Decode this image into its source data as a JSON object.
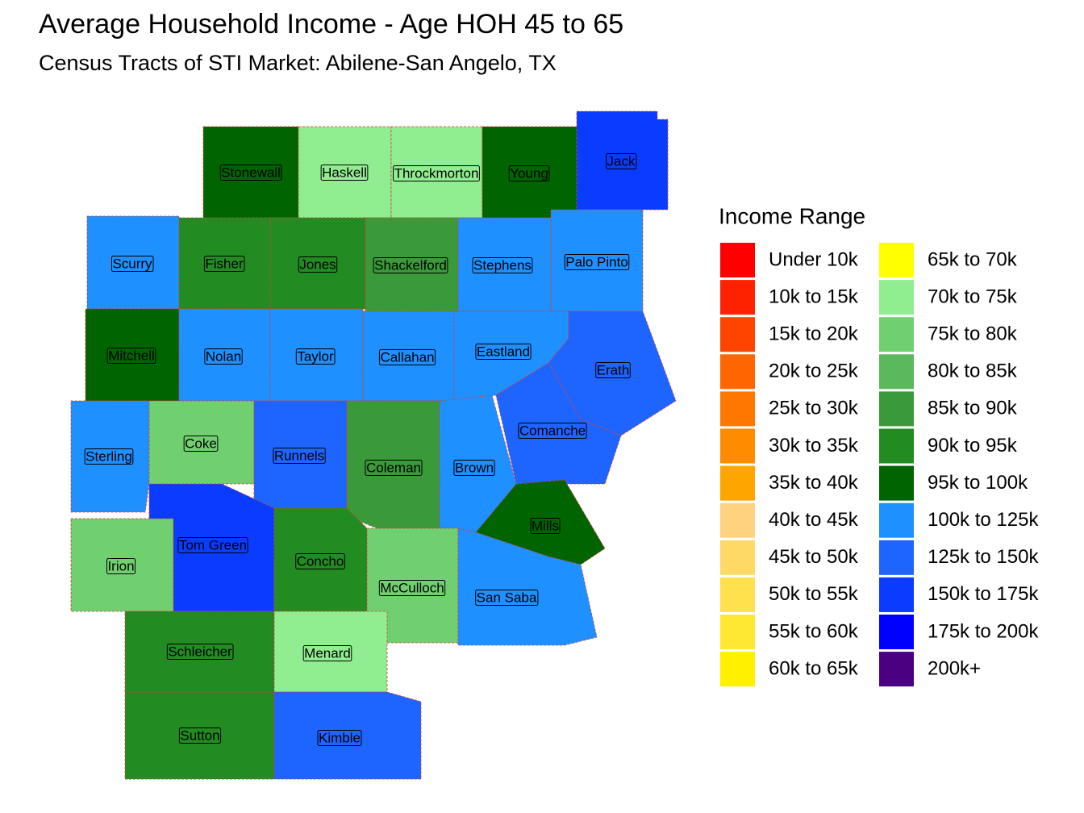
{
  "title": "Average Household Income - Age HOH 45 to 65",
  "subtitle": "Census Tracts of STI Market: Abilene-San Angelo, TX",
  "legend": {
    "title": "Income Range",
    "items": [
      {
        "label": "Under 10k",
        "color": "#FF0000"
      },
      {
        "label": "10k to 15k",
        "color": "#FF2200"
      },
      {
        "label": "15k to 20k",
        "color": "#FF4400"
      },
      {
        "label": "20k to 25k",
        "color": "#FF6600"
      },
      {
        "label": "25k to 30k",
        "color": "#FF7700"
      },
      {
        "label": "30k to 35k",
        "color": "#FF8C00"
      },
      {
        "label": "35k to 40k",
        "color": "#FFA500"
      },
      {
        "label": "40k to 45k",
        "color": "#FFD27F"
      },
      {
        "label": "45k to 50k",
        "color": "#FFD966"
      },
      {
        "label": "50k to 55k",
        "color": "#FFE04D"
      },
      {
        "label": "55k to 60k",
        "color": "#FFE833"
      },
      {
        "label": "60k to 65k",
        "color": "#FFF000"
      },
      {
        "label": "65k to 70k",
        "color": "#FFFF00"
      },
      {
        "label": "70k to 75k",
        "color": "#90EE90"
      },
      {
        "label": "75k to 80k",
        "color": "#70D070"
      },
      {
        "label": "80k to 85k",
        "color": "#5CB85C"
      },
      {
        "label": "85k to 90k",
        "color": "#3A9A3A"
      },
      {
        "label": "90k to 95k",
        "color": "#228B22"
      },
      {
        "label": "95k to 100k",
        "color": "#006400"
      },
      {
        "label": "100k to 125k",
        "color": "#1E90FF"
      },
      {
        "label": "125k to 150k",
        "color": "#1E64FF"
      },
      {
        "label": "150k to 175k",
        "color": "#0A3CFF"
      },
      {
        "label": "175k to 200k",
        "color": "#0000FF"
      },
      {
        "label": "200k+",
        "color": "#4B0082"
      }
    ]
  },
  "counties": [
    {
      "name": "Stonewall",
      "color": "#006400"
    },
    {
      "name": "Haskell",
      "color": "#90EE90"
    },
    {
      "name": "Throckmorton",
      "color": "#90EE90"
    },
    {
      "name": "Young",
      "color": "#006400"
    },
    {
      "name": "Jack",
      "color": "#0A3CFF"
    },
    {
      "name": "Scurry",
      "color": "#1E90FF"
    },
    {
      "name": "Fisher",
      "color": "#228B22"
    },
    {
      "name": "Jones",
      "color": "#228B22"
    },
    {
      "name": "Shackelford",
      "color": "#3A9A3A"
    },
    {
      "name": "Stephens",
      "color": "#1E90FF"
    },
    {
      "name": "Palo Pinto",
      "color": "#1E90FF"
    },
    {
      "name": "Mitchell",
      "color": "#006400"
    },
    {
      "name": "Nolan",
      "color": "#1E90FF"
    },
    {
      "name": "Taylor",
      "color": "#1E90FF"
    },
    {
      "name": "Callahan",
      "color": "#1E90FF"
    },
    {
      "name": "Eastland",
      "color": "#1E90FF"
    },
    {
      "name": "Erath",
      "color": "#1E64FF"
    },
    {
      "name": "Sterling",
      "color": "#1E90FF"
    },
    {
      "name": "Coke",
      "color": "#70D070"
    },
    {
      "name": "Runnels",
      "color": "#1E64FF"
    },
    {
      "name": "Coleman",
      "color": "#3A9A3A"
    },
    {
      "name": "Comanche",
      "color": "#1E64FF"
    },
    {
      "name": "Brown",
      "color": "#1E90FF"
    },
    {
      "name": "Mills",
      "color": "#006400"
    },
    {
      "name": "Irion",
      "color": "#70D070"
    },
    {
      "name": "Tom Green",
      "color": "#0A3CFF"
    },
    {
      "name": "Concho",
      "color": "#228B22"
    },
    {
      "name": "McCulloch",
      "color": "#70D070"
    },
    {
      "name": "San Saba",
      "color": "#1E90FF"
    },
    {
      "name": "Schleicher",
      "color": "#228B22"
    },
    {
      "name": "Menard",
      "color": "#90EE90"
    },
    {
      "name": "Sutton",
      "color": "#228B22"
    },
    {
      "name": "Kimble",
      "color": "#1E64FF"
    }
  ]
}
